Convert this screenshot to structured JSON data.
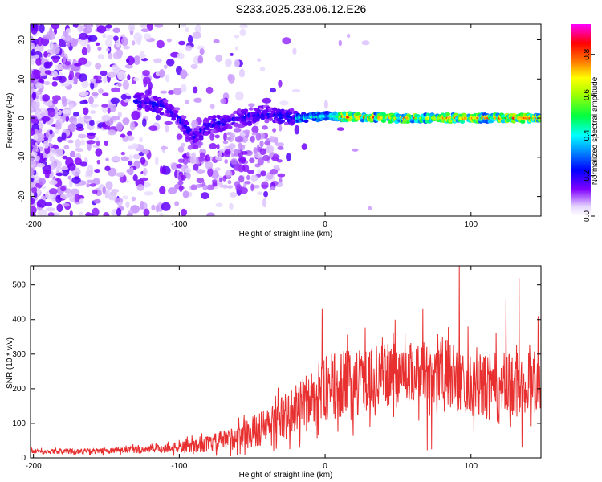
{
  "chart_data": [
    {
      "type": "heatmap",
      "title": "S233.2025.238.06.12.E26",
      "xlabel": "Height of straight line (km)",
      "ylabel": "Frequency (Hz)",
      "xlim": [
        -202,
        148
      ],
      "ylim": [
        -25,
        24
      ],
      "xticks": [
        -200,
        -100,
        0,
        100
      ],
      "xtick_labels": [
        "-200",
        "-100",
        "0",
        "100"
      ],
      "yticks": [
        -20,
        -10,
        0,
        10,
        20
      ],
      "ytick_labels": [
        "-20",
        "-10",
        "0",
        "10",
        "20"
      ],
      "colorbar": {
        "label": "Normalized spectral amplitude",
        "range": [
          0,
          0.95
        ],
        "ticks": [
          0.0,
          0.2,
          0.4,
          0.6,
          0.8
        ],
        "tick_labels": [
          "0.0",
          "0.2",
          "0.4",
          "0.6",
          "0.8"
        ]
      },
      "ridge": {
        "description_points": [
          {
            "x": -125,
            "y": 4
          },
          {
            "x": -110,
            "y": 3
          },
          {
            "x": -100,
            "y": 0
          },
          {
            "x": -90,
            "y": -5
          },
          {
            "x": -80,
            "y": -2
          },
          {
            "x": -60,
            "y": 0
          },
          {
            "x": -40,
            "y": 1
          },
          {
            "x": -20,
            "y": 0
          },
          {
            "x": 0,
            "y": 0.5
          },
          {
            "x": 50,
            "y": 0
          },
          {
            "x": 100,
            "y": 0
          },
          {
            "x": 148,
            "y": 0
          }
        ]
      }
    },
    {
      "type": "line",
      "title": "",
      "xlabel": "Height of straight line (km)",
      "ylabel": "SNR (10 * v/v)",
      "xlim": [
        -202,
        148
      ],
      "ylim": [
        0,
        555
      ],
      "xticks": [
        -200,
        -100,
        0,
        100
      ],
      "xtick_labels": [
        "-200",
        "-100",
        "0",
        "100"
      ],
      "yticks": [
        0,
        100,
        200,
        300,
        400,
        500
      ],
      "ytick_labels": [
        "0",
        "100",
        "200",
        "300",
        "400",
        "500"
      ],
      "series": [
        {
          "name": "SNR",
          "color": "#e83030",
          "envelope": {
            "x": [
              -202,
              -150,
              -120,
              -100,
              -80,
              -60,
              -40,
              -20,
              0,
              20,
              40,
              60,
              80,
              100,
              120,
              148
            ],
            "mean": [
              18,
              20,
              25,
              30,
              40,
              60,
              90,
              140,
              200,
              220,
              240,
              250,
              250,
              210,
              200,
              230
            ],
            "amplitude": [
              8,
              10,
              15,
              20,
              30,
              45,
              70,
              90,
              120,
              120,
              110,
              110,
              130,
              110,
              130,
              110
            ]
          },
          "peaks": [
            {
              "x": -2,
              "y": 430
            },
            {
              "x": 48,
              "y": 400
            },
            {
              "x": 67,
              "y": 430
            },
            {
              "x": 92,
              "y": 555
            },
            {
              "x": 98,
              "y": 380
            },
            {
              "x": 104,
              "y": 320
            },
            {
              "x": 124,
              "y": 460
            },
            {
              "x": 133,
              "y": 520
            },
            {
              "x": 135,
              "y": 540
            },
            {
              "x": 146,
              "y": 410
            }
          ],
          "troughs": [
            {
              "x": 70,
              "y": 22
            },
            {
              "x": 73,
              "y": 25
            },
            {
              "x": 135,
              "y": 30
            }
          ]
        }
      ]
    }
  ],
  "colors": {
    "line": "#e83030",
    "colormap": [
      "#ffffff",
      "#e0d0ff",
      "#8000ff",
      "#0000ff",
      "#00ffff",
      "#00ff00",
      "#ffff00",
      "#ff8000",
      "#ff0000",
      "#ff00ff"
    ]
  }
}
